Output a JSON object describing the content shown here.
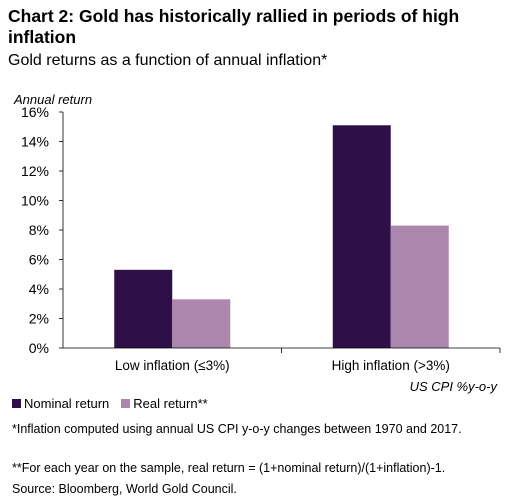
{
  "title": "Chart 2: Gold has historically rallied in periods of high inflation",
  "subtitle": "Gold returns as a function of annual inflation*",
  "chart_data": {
    "type": "bar",
    "categories": [
      "Low inflation (≤3%)",
      "High inflation (>3%)"
    ],
    "series": [
      {
        "name": "Nominal return",
        "color": "#2e0f48",
        "values": [
          5.3,
          15.1
        ]
      },
      {
        "name": "Real return**",
        "color": "#ad86ad",
        "values": [
          3.3,
          8.3
        ]
      }
    ],
    "ylabel": "Annual return",
    "xlabel": "US CPI %y-o-y",
    "ylim": [
      0,
      16
    ],
    "yticks": [
      "0%",
      "2%",
      "4%",
      "6%",
      "8%",
      "10%",
      "12%",
      "14%",
      "16%"
    ],
    "grid": false,
    "legend_position": "bottom-left"
  },
  "notes": {
    "note1": "*Inflation computed using annual US CPI y-o-y changes between 1970 and 2017.",
    "note2": "**For each year on the sample, real return = (1+nominal return)/(1+inflation)-1.",
    "source": "Source: Bloomberg, World Gold Council."
  }
}
